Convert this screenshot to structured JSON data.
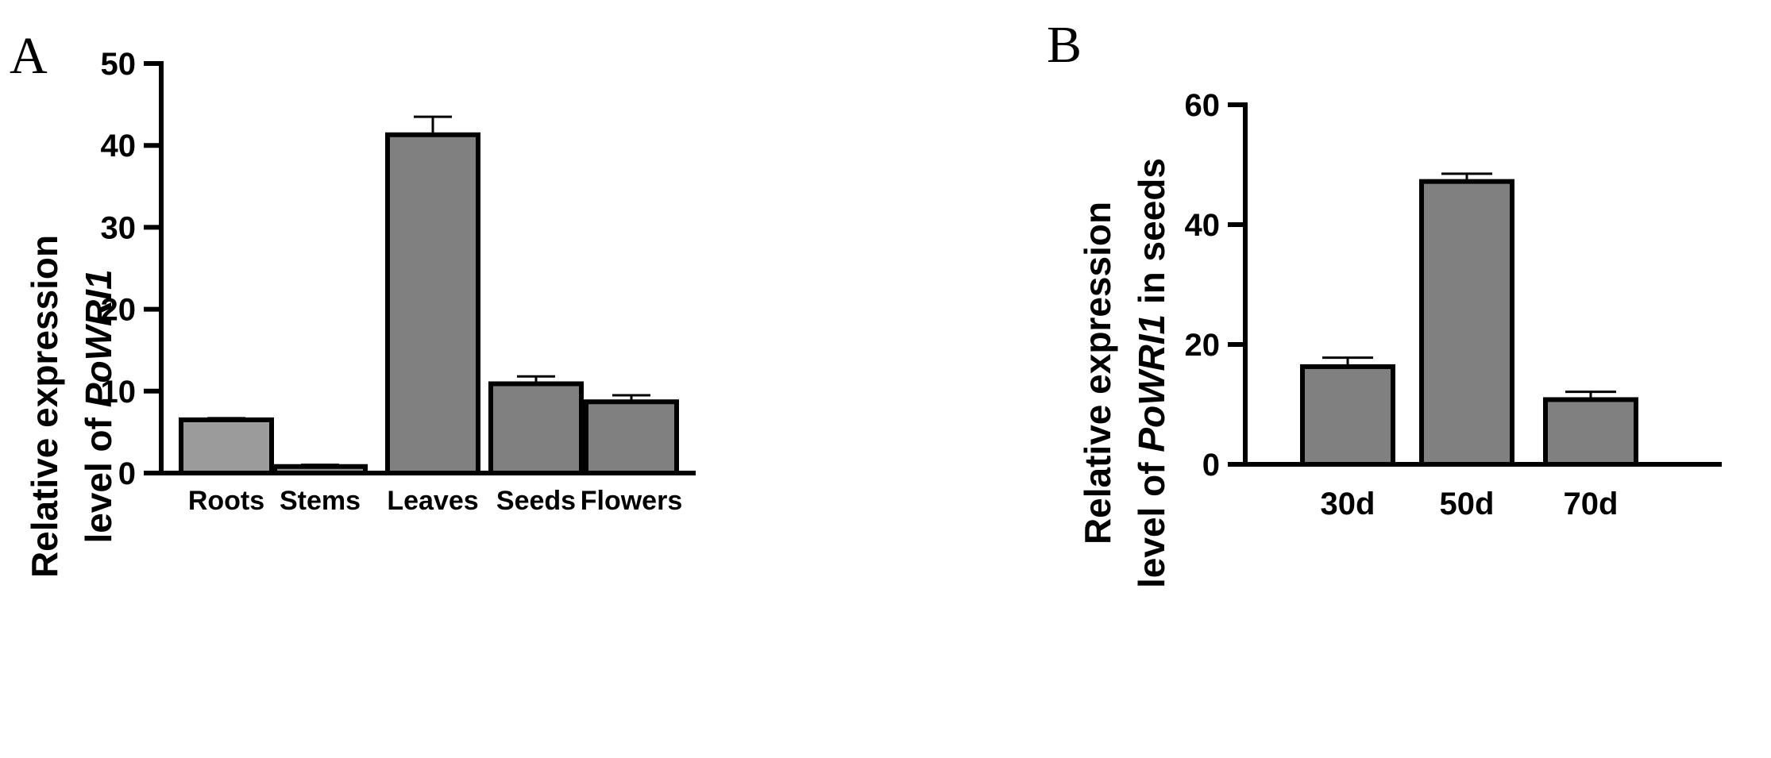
{
  "chart_data": [
    {
      "panel": "A",
      "type": "bar",
      "categories": [
        "Roots",
        "Stems",
        "Leaves",
        "Seeds",
        "Flowers"
      ],
      "values": [
        6.5,
        0.8,
        41.3,
        10.9,
        8.7
      ],
      "errors": [
        0.2,
        0.2,
        2.2,
        0.9,
        0.8
      ],
      "bar_colors": [
        "#9b9b9b",
        "#8f8f8f",
        "#808080",
        "#808080",
        "#808080"
      ],
      "ylabel_line1": "Relative expression",
      "ylabel_line2_prefix": "level of ",
      "ylabel_gene": "PoWRI1",
      "ylabel_line2_suffix": "",
      "ylim": [
        0,
        50
      ],
      "yticks": [
        0,
        10,
        20,
        30,
        40,
        50
      ],
      "grid": false
    },
    {
      "panel": "B",
      "type": "bar",
      "categories": [
        "30d",
        "50d",
        "70d"
      ],
      "values": [
        16.3,
        47.2,
        10.8
      ],
      "errors": [
        1.5,
        1.3,
        1.3
      ],
      "bar_colors": [
        "#808080",
        "#808080",
        "#808080"
      ],
      "ylabel_line1": "Relative expression",
      "ylabel_line2_prefix": "level of ",
      "ylabel_gene": "PoWRI1",
      "ylabel_line2_suffix": " in seeds",
      "ylim": [
        0,
        60
      ],
      "yticks": [
        0,
        20,
        40,
        60
      ],
      "grid": false
    }
  ]
}
